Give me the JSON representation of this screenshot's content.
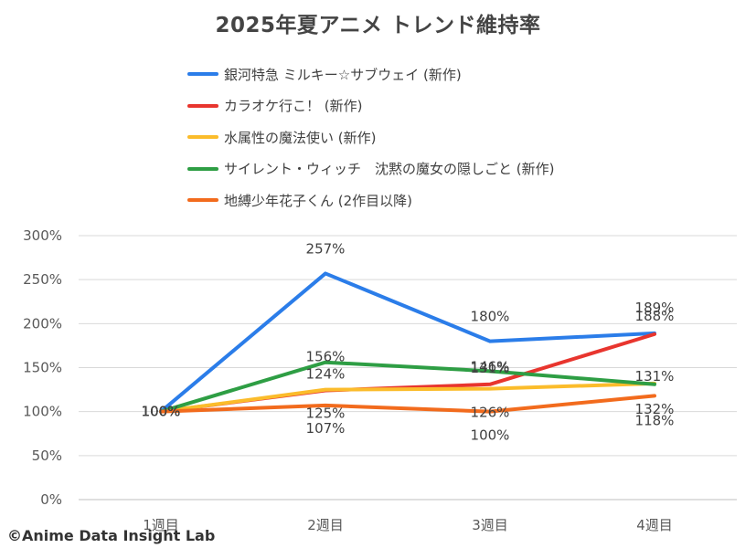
{
  "chart_data": {
    "type": "line",
    "title": "2025年夏アニメ トレンド維持率",
    "categories": [
      "1週目",
      "2週目",
      "3週目",
      "4週目"
    ],
    "ylim": [
      0,
      300
    ],
    "yticks": [
      "0%",
      "50%",
      "100%",
      "150%",
      "200%",
      "250%",
      "300%"
    ],
    "grid": true,
    "legend_position": "top",
    "series": [
      {
        "name": "銀河特急 ミルキー☆サブウェイ (新作)",
        "color": "#2b7de9",
        "values": [
          100,
          257,
          180,
          189
        ],
        "labels": [
          "100%",
          "257%",
          "180%",
          "189%"
        ]
      },
      {
        "name": "カラオケ行こ！ (新作)",
        "color": "#e8352e",
        "values": [
          100,
          124,
          131,
          188
        ],
        "labels": [
          "100%",
          "124%",
          "131%",
          "188%"
        ]
      },
      {
        "name": "水属性の魔法使い (新作)",
        "color": "#fbbc2b",
        "values": [
          100,
          125,
          126,
          132
        ],
        "labels": [
          "100%",
          "125%",
          "126%",
          "132%"
        ]
      },
      {
        "name": "サイレント・ウィッチ　沈黙の魔女の隠しごと (新作)",
        "color": "#2e9e44",
        "values": [
          100,
          156,
          146,
          131
        ],
        "labels": [
          "100%",
          "156%",
          "146%",
          "131%"
        ]
      },
      {
        "name": "地縛少年花子くん (2作目以降)",
        "color": "#f26b1d",
        "values": [
          100,
          107,
          100,
          118
        ],
        "labels": [
          "100%",
          "107%",
          "100%",
          "118%"
        ]
      }
    ]
  },
  "footer": {
    "credit": "©Anime Data Insight Lab"
  }
}
